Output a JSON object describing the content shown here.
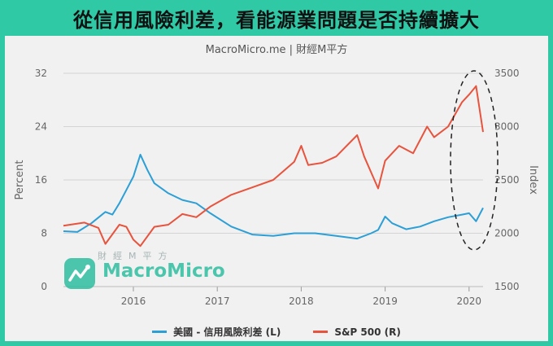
{
  "header": {
    "title": "從信用風險利差，看能源業問題是否持續擴大"
  },
  "watermark": {
    "small_text": "財經M平方",
    "brand_text": "MacroMicro"
  },
  "colors": {
    "background": "#2fc9a6",
    "spread_line": "#2b9fd6",
    "sp500_line": "#e8533d",
    "grid": "#d4d4d4"
  },
  "chart_data": {
    "type": "line",
    "title": "",
    "subtitle": "MacroMicro.me | 財經M平方",
    "x_ticks": [
      "2016",
      "2017",
      "2018",
      "2019",
      "2020"
    ],
    "x_range": [
      "2015-03",
      "2020-03"
    ],
    "y_left": {
      "label": "Percent",
      "ticks": [
        0,
        8,
        16,
        24,
        32
      ],
      "range": [
        0,
        32
      ]
    },
    "y_right": {
      "label": "Index",
      "ticks": [
        1500,
        2000,
        2500,
        3000,
        3500
      ],
      "range": [
        1500,
        3500
      ]
    },
    "grid": true,
    "legend_position": "bottom",
    "legend": [
      "美國 - 信用風險利差 (L)",
      "S&P 500 (R)"
    ],
    "series": [
      {
        "name": "美國 - 信用風險利差 (L)",
        "axis": "left",
        "points": [
          [
            "2015-03",
            8.3
          ],
          [
            "2015-05",
            8.2
          ],
          [
            "2015-07",
            9.5
          ],
          [
            "2015-09",
            11.2
          ],
          [
            "2015-10",
            10.8
          ],
          [
            "2015-11",
            12.5
          ],
          [
            "2015-12",
            14.5
          ],
          [
            "2016-01",
            16.5
          ],
          [
            "2016-02",
            19.8
          ],
          [
            "2016-03",
            17.5
          ],
          [
            "2016-04",
            15.5
          ],
          [
            "2016-06",
            14.0
          ],
          [
            "2016-08",
            13.0
          ],
          [
            "2016-10",
            12.5
          ],
          [
            "2016-12",
            11.0
          ],
          [
            "2017-03",
            9.0
          ],
          [
            "2017-06",
            7.8
          ],
          [
            "2017-09",
            7.6
          ],
          [
            "2017-12",
            8.0
          ],
          [
            "2018-03",
            8.0
          ],
          [
            "2018-06",
            7.6
          ],
          [
            "2018-09",
            7.2
          ],
          [
            "2018-11",
            8.0
          ],
          [
            "2018-12",
            8.5
          ],
          [
            "2019-01",
            10.5
          ],
          [
            "2019-02",
            9.5
          ],
          [
            "2019-04",
            8.6
          ],
          [
            "2019-06",
            9.0
          ],
          [
            "2019-08",
            9.8
          ],
          [
            "2019-10",
            10.4
          ],
          [
            "2019-12",
            10.8
          ],
          [
            "2020-01",
            11.0
          ],
          [
            "2020-02",
            9.8
          ],
          [
            "2020-03",
            11.8
          ]
        ]
      },
      {
        "name": "S&P 500 (R)",
        "axis": "right",
        "points": [
          [
            "2015-03",
            2070
          ],
          [
            "2015-06",
            2100
          ],
          [
            "2015-08",
            2050
          ],
          [
            "2015-09",
            1900
          ],
          [
            "2015-11",
            2080
          ],
          [
            "2015-12",
            2060
          ],
          [
            "2016-01",
            1940
          ],
          [
            "2016-02",
            1880
          ],
          [
            "2016-04",
            2060
          ],
          [
            "2016-06",
            2080
          ],
          [
            "2016-08",
            2180
          ],
          [
            "2016-10",
            2150
          ],
          [
            "2016-12",
            2250
          ],
          [
            "2017-03",
            2360
          ],
          [
            "2017-06",
            2430
          ],
          [
            "2017-09",
            2500
          ],
          [
            "2017-12",
            2670
          ],
          [
            "2018-01",
            2820
          ],
          [
            "2018-02",
            2640
          ],
          [
            "2018-04",
            2660
          ],
          [
            "2018-06",
            2720
          ],
          [
            "2018-09",
            2920
          ],
          [
            "2018-10",
            2720
          ],
          [
            "2018-12",
            2420
          ],
          [
            "2019-01",
            2680
          ],
          [
            "2019-03",
            2820
          ],
          [
            "2019-05",
            2750
          ],
          [
            "2019-07",
            3000
          ],
          [
            "2019-08",
            2900
          ],
          [
            "2019-10",
            3000
          ],
          [
            "2019-12",
            3230
          ],
          [
            "2020-01",
            3300
          ],
          [
            "2020-02",
            3380
          ],
          [
            "2020-03",
            2950
          ]
        ]
      }
    ],
    "annotations": [
      {
        "type": "dashed-ellipse",
        "around": "2020-01 to 2020-03"
      }
    ]
  }
}
